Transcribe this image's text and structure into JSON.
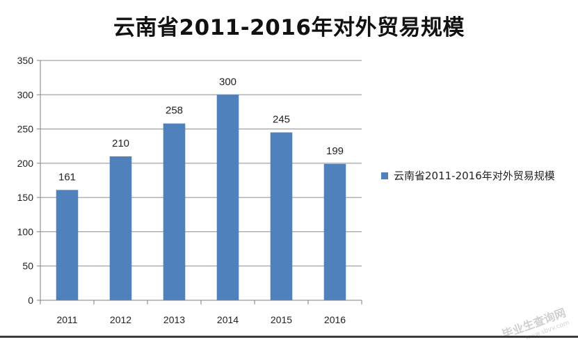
{
  "colors": {
    "bar": "#4f81bd",
    "axis": "#7f7f7f",
    "grid": "#8c8c8c"
  },
  "chart_data": {
    "type": "bar",
    "title": "云南省2011-2016年对外贸易规模",
    "categories": [
      "2011",
      "2012",
      "2013",
      "2014",
      "2015",
      "2016"
    ],
    "series": [
      {
        "name": "云南省2011-2016年对外贸易规模",
        "values": [
          161,
          210,
          258,
          300,
          245,
          199
        ]
      }
    ],
    "ylim": [
      0,
      350
    ],
    "yticks": [
      0,
      50,
      100,
      150,
      200,
      250,
      300,
      350
    ],
    "grid": true,
    "legend_position": "right",
    "data_labels": true
  },
  "watermark": {
    "text": "毕业生查询网",
    "url": "www.sbvv.com"
  }
}
